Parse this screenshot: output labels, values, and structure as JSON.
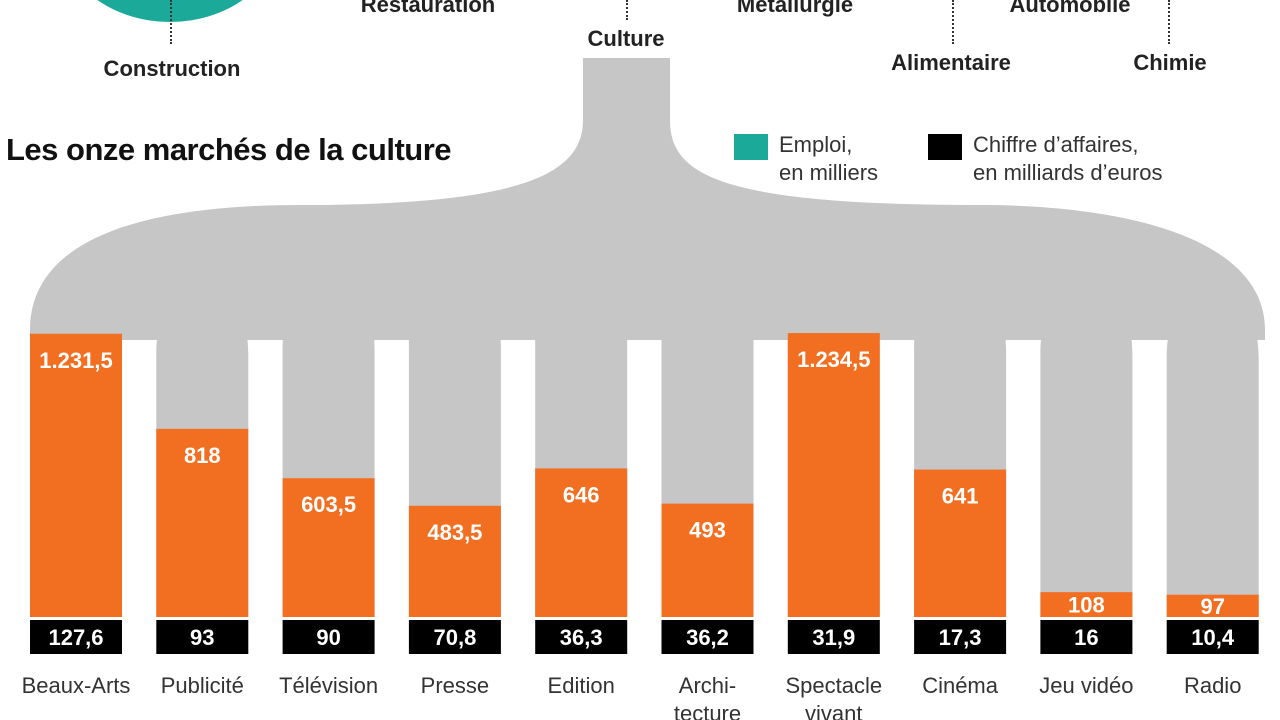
{
  "header": {
    "top_labels": [
      "Restauration",
      "Métallurgie",
      "Automobile"
    ],
    "mid_labels": [
      "Construction",
      "Alimentaire",
      "Chimie"
    ],
    "culture_label": "Culture"
  },
  "legend": {
    "employment_line1": "Emploi,",
    "employment_line2": "en milliers",
    "revenue_line1": "Chiffre d’affaires,",
    "revenue_line2": "en milliards d’euros"
  },
  "colors": {
    "employment": "#f26f22",
    "revenue": "#000000",
    "flow": "#c6c6c6",
    "teal": "#1ba99a"
  },
  "chart_data": {
    "type": "bar",
    "title": "Les onze marchés de la culture",
    "categories": [
      "Beaux-Arts",
      "Publicité",
      "Télévision",
      "Presse",
      "Edition",
      "Architecture",
      "Spectacle vivant",
      "Cinéma",
      "Jeu vidéo",
      "Radio"
    ],
    "category_label_lines": [
      [
        "Beaux-Arts"
      ],
      [
        "Publicité"
      ],
      [
        "Télévision"
      ],
      [
        "Presse"
      ],
      [
        "Edition"
      ],
      [
        "Archi-",
        "tecture"
      ],
      [
        "Spectacle",
        "vivant"
      ],
      [
        "Cinéma"
      ],
      [
        "Jeu vidéo"
      ],
      [
        "Radio"
      ]
    ],
    "series": [
      {
        "name": "Emploi, en milliers",
        "values": [
          1231.5,
          818,
          603.5,
          483.5,
          646,
          493,
          1234.5,
          641,
          108,
          97
        ],
        "labels": [
          "1.231,5",
          "818",
          "603,5",
          "483,5",
          "646",
          "493",
          "1.234,5",
          "641",
          "108",
          "97"
        ]
      },
      {
        "name": "Chiffre d’affaires, en milliards d’euros",
        "values": [
          127.6,
          93,
          90,
          70.8,
          36.3,
          36.2,
          31.9,
          17.3,
          16,
          10.4
        ],
        "labels": [
          "127,6",
          "93",
          "90",
          "70,8",
          "36,3",
          "36,2",
          "31,9",
          "17,3",
          "16",
          "10,4"
        ]
      }
    ],
    "ylim": [
      0,
      1250
    ]
  }
}
